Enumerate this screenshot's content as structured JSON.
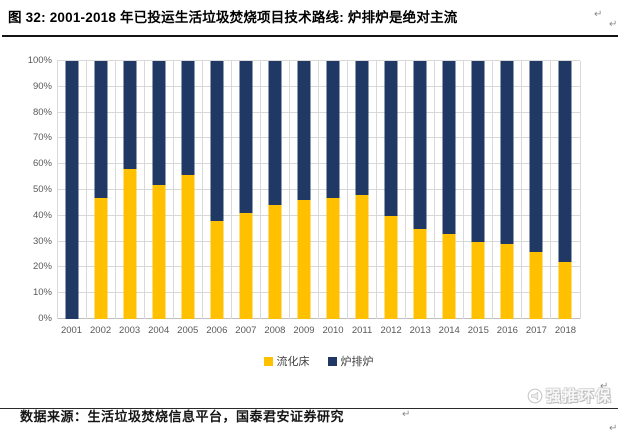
{
  "title": "图 32: 2001-2018 年已投运生活垃圾焚烧项目技术路线: 炉排炉是绝对主流",
  "paragraph_mark": "↵",
  "chart_data": {
    "type": "bar",
    "stacked": true,
    "percent_stacked": true,
    "title": "图 32: 2001-2018 年已投运生活垃圾焚烧项目技术路线: 炉排炉是绝对主流",
    "categories": [
      "2001",
      "2002",
      "2003",
      "2004",
      "2005",
      "2006",
      "2007",
      "2008",
      "2009",
      "2010",
      "2011",
      "2012",
      "2013",
      "2014",
      "2015",
      "2016",
      "2017",
      "2018"
    ],
    "series": [
      {
        "name": "流化床",
        "color": "#FFC000",
        "values": [
          0,
          47,
          58,
          52,
          56,
          38,
          41,
          44,
          46,
          47,
          48,
          40,
          35,
          33,
          30,
          29,
          26,
          22
        ]
      },
      {
        "name": "炉排炉",
        "color": "#1F3864",
        "values": [
          100,
          53,
          42,
          48,
          44,
          62,
          59,
          56,
          54,
          53,
          52,
          60,
          65,
          67,
          70,
          71,
          74,
          78
        ]
      }
    ],
    "xlabel": "",
    "ylabel": "",
    "y_ticks": [
      "0%",
      "10%",
      "20%",
      "30%",
      "40%",
      "50%",
      "60%",
      "70%",
      "80%",
      "90%",
      "100%"
    ],
    "ylim": [
      0,
      100
    ],
    "grid": {
      "horizontal": true,
      "vertical": true,
      "color": "#D9D9D9"
    },
    "legend_position": "bottom"
  },
  "footer": {
    "source_text": "数据来源：生活垃圾焚烧信息平台，国泰君安证券研究"
  },
  "watermark": {
    "text": "强推环保",
    "icon": "megaphone-icon"
  }
}
